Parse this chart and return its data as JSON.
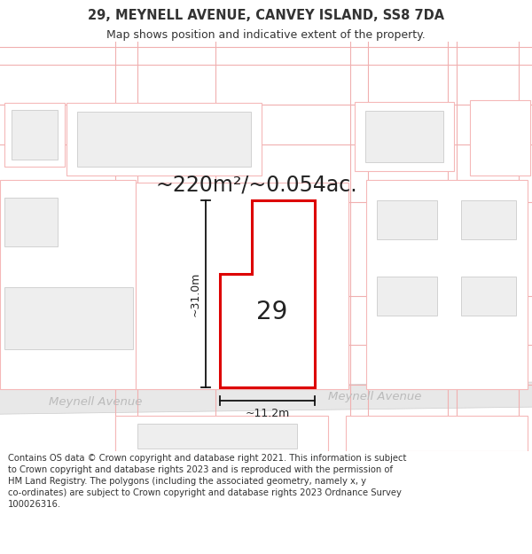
{
  "title": "29, MEYNELL AVENUE, CANVEY ISLAND, SS8 7DA",
  "subtitle": "Map shows position and indicative extent of the property.",
  "area_text": "~220m²/~0.054ac.",
  "label_number": "29",
  "dim_width": "~11.2m",
  "dim_height": "~31.0m",
  "street_name_left": "Meynell Avenue",
  "street_name_right": "Meynell Avenue",
  "copyright_text": "Contains OS data © Crown copyright and database right 2021. This information is subject to Crown copyright and database rights 2023 and is reproduced with the permission of HM Land Registry. The polygons (including the associated geometry, namely x, y co-ordinates) are subject to Crown copyright and database rights 2023 Ordnance Survey 100026316.",
  "bg_color": "#ffffff",
  "map_bg": "#ffffff",
  "road_color": "#e8e8e8",
  "building_fill": "#eeeeee",
  "building_edge_pink": "#f5b8b8",
  "building_edge_grey": "#cccccc",
  "plot_fill": "#ffffff",
  "plot_stroke": "#dd0000",
  "grid_color": "#f0b0b0",
  "dim_color": "#111111",
  "text_color": "#333333",
  "street_text_color": "#bbbbbb",
  "title_fontsize": 10.5,
  "subtitle_fontsize": 9,
  "area_fontsize": 17,
  "label_fontsize": 20,
  "dim_fontsize": 9,
  "street_fontsize": 9.5,
  "copyright_fontsize": 7.2
}
